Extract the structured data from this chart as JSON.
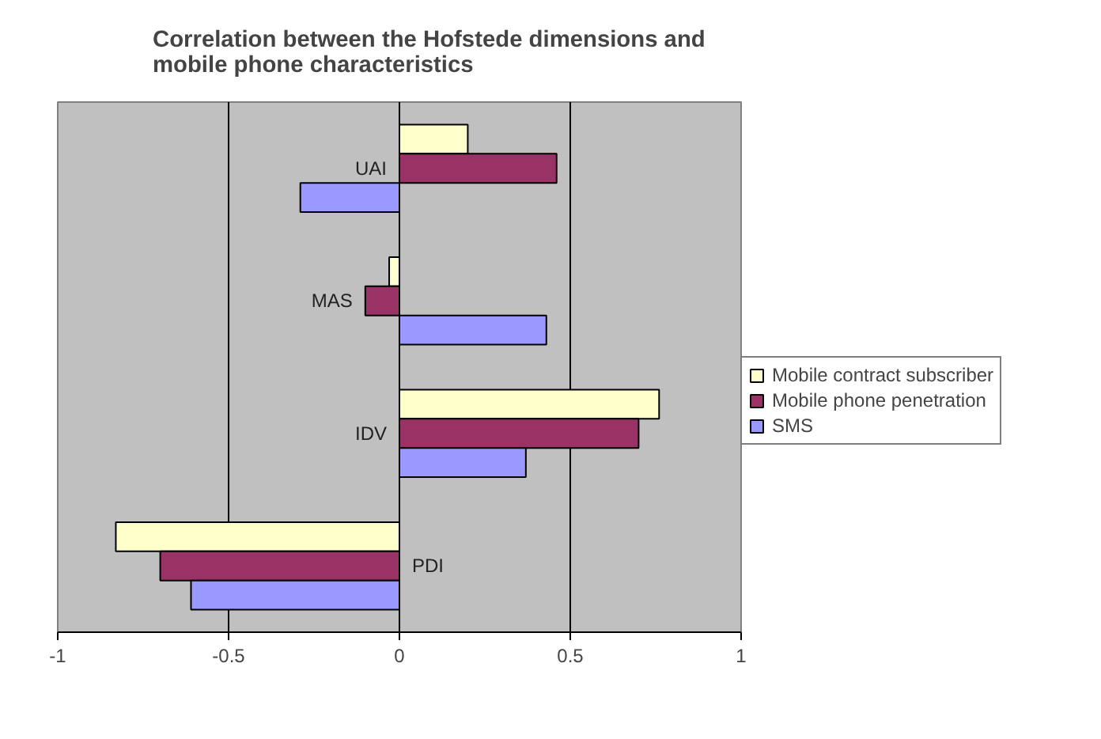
{
  "chart_data": {
    "type": "bar",
    "orientation": "horizontal",
    "title": "Correlation between the Hofstede dimensions and mobile phone characteristics",
    "categories": [
      "UAI",
      "MAS",
      "IDV",
      "PDI"
    ],
    "series": [
      {
        "name": "Mobile contract subscriber",
        "color": "#ffffcc",
        "values": [
          0.2,
          -0.03,
          0.76,
          -0.83
        ]
      },
      {
        "name": "Mobile phone penetration",
        "color": "#993366",
        "values": [
          0.46,
          -0.1,
          0.7,
          -0.7
        ]
      },
      {
        "name": "SMS",
        "color": "#9999ff",
        "values": [
          -0.29,
          0.43,
          0.37,
          -0.61
        ]
      }
    ],
    "xlim": [
      -1,
      1
    ],
    "xticks": [
      -1,
      -0.5,
      0,
      0.5,
      1
    ],
    "grid": "x",
    "legend": "right"
  }
}
